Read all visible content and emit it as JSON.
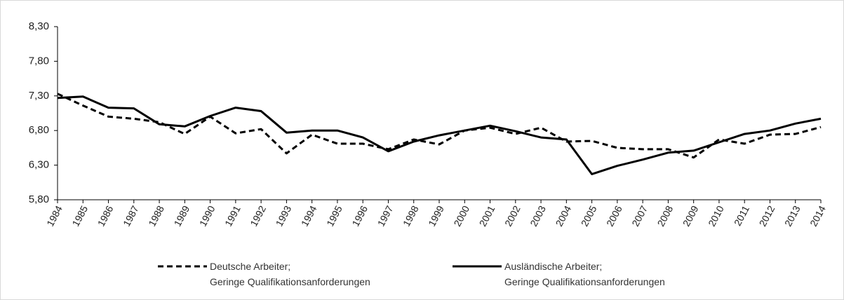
{
  "chart_data": {
    "type": "line",
    "categories": [
      "1984",
      "1985",
      "1986",
      "1987",
      "1988",
      "1989",
      "1990",
      "1991",
      "1992",
      "1993",
      "1994",
      "1995",
      "1996",
      "1997",
      "1998",
      "1999",
      "2000",
      "2001",
      "2002",
      "2003",
      "2004",
      "2005",
      "2006",
      "2007",
      "2008",
      "2009",
      "2010",
      "2011",
      "2012",
      "2013",
      "2014"
    ],
    "series": [
      {
        "name": "Deutsche Arbeiter;\nGeringe Qualifikationsanforderungen",
        "color": "#000000",
        "dash": true,
        "values": [
          7.33,
          7.16,
          7.0,
          6.97,
          6.92,
          6.75,
          7.0,
          6.76,
          6.82,
          6.47,
          6.74,
          6.61,
          6.61,
          6.53,
          6.67,
          6.6,
          6.8,
          6.84,
          6.75,
          6.84,
          6.64,
          6.65,
          6.55,
          6.53,
          6.53,
          6.41,
          6.67,
          6.61,
          6.74,
          6.75,
          6.85
        ]
      },
      {
        "name": "Ausländische Arbeiter;\nGeringe Qualifikationsanforderungen",
        "color": "#000000",
        "dash": false,
        "values": [
          7.27,
          7.29,
          7.13,
          7.12,
          6.89,
          6.86,
          7.01,
          7.13,
          7.08,
          6.77,
          6.8,
          6.8,
          6.7,
          6.5,
          6.64,
          6.73,
          6.8,
          6.87,
          6.79,
          6.7,
          6.67,
          6.17,
          6.29,
          6.38,
          6.48,
          6.51,
          6.63,
          6.75,
          6.8,
          6.9,
          6.97
        ]
      }
    ],
    "ylim": [
      5.8,
      8.3
    ],
    "yticks": [
      {
        "value": 5.8,
        "label": "5,80"
      },
      {
        "value": 6.3,
        "label": "6,30"
      },
      {
        "value": 6.8,
        "label": "6,80"
      },
      {
        "value": 7.3,
        "label": "7,30"
      },
      {
        "value": 7.8,
        "label": "7,80"
      },
      {
        "value": 8.3,
        "label": "8,30"
      }
    ],
    "grid": false
  }
}
